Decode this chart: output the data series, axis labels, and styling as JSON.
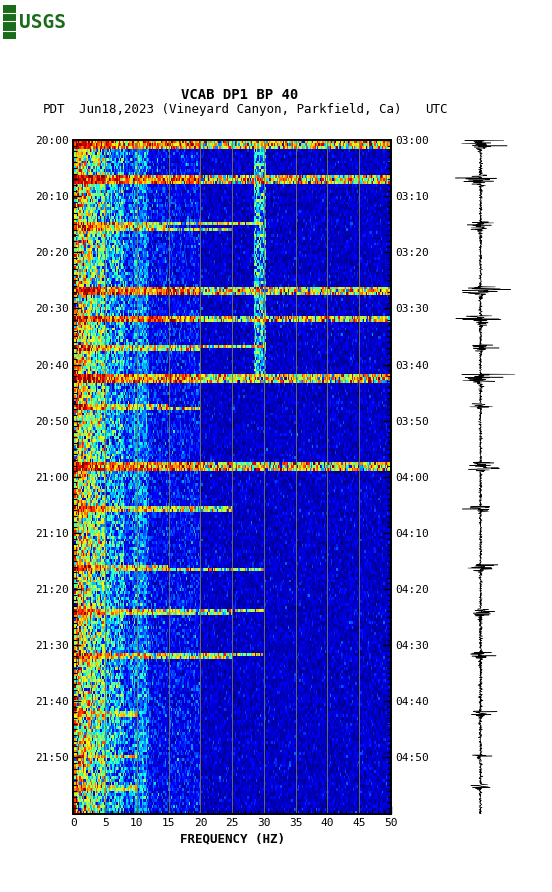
{
  "title_line1": "VCAB DP1 BP 40",
  "title_line2_left": "PDT",
  "title_line2_mid": "Jun18,2023 (Vineyard Canyon, Parkfield, Ca)",
  "title_line2_right": "UTC",
  "xlabel": "FREQUENCY (HZ)",
  "freq_min": 0,
  "freq_max": 50,
  "freq_ticks": [
    0,
    5,
    10,
    15,
    20,
    25,
    30,
    35,
    40,
    45,
    50
  ],
  "left_time_labels": [
    "20:00",
    "20:10",
    "20:20",
    "20:30",
    "20:40",
    "20:50",
    "21:00",
    "21:10",
    "21:20",
    "21:30",
    "21:40",
    "21:50"
  ],
  "right_time_labels": [
    "03:00",
    "03:10",
    "03:20",
    "03:30",
    "03:40",
    "03:50",
    "04:00",
    "04:10",
    "04:20",
    "04:30",
    "04:40",
    "04:50"
  ],
  "n_time_steps": 230,
  "n_freq_bins": 250,
  "vline_freqs": [
    5,
    10,
    15,
    20,
    25,
    30,
    35,
    40,
    45
  ],
  "vline_color": "#808040",
  "background_color": "#ffffff",
  "logo_color": "#1a6b1a",
  "event_rows": [
    0,
    1,
    2,
    12,
    13,
    14,
    28,
    29,
    30,
    50,
    51,
    52,
    60,
    61,
    62,
    70,
    71,
    80,
    81,
    82,
    83,
    90,
    91,
    110,
    111,
    112,
    125,
    126,
    145,
    146,
    160,
    161,
    162,
    175,
    176,
    195,
    196,
    210,
    220,
    221
  ],
  "wide_event_rows": [
    0,
    1,
    2,
    12,
    13,
    14,
    50,
    51,
    52,
    60,
    61,
    80,
    81,
    82,
    110,
    111,
    112
  ],
  "medium_event_rows": [
    28,
    29,
    30,
    70,
    71,
    90,
    91,
    125,
    126,
    145,
    146,
    160,
    161,
    175,
    176
  ],
  "narrow_event_rows": [
    195,
    196,
    210,
    220,
    221
  ]
}
